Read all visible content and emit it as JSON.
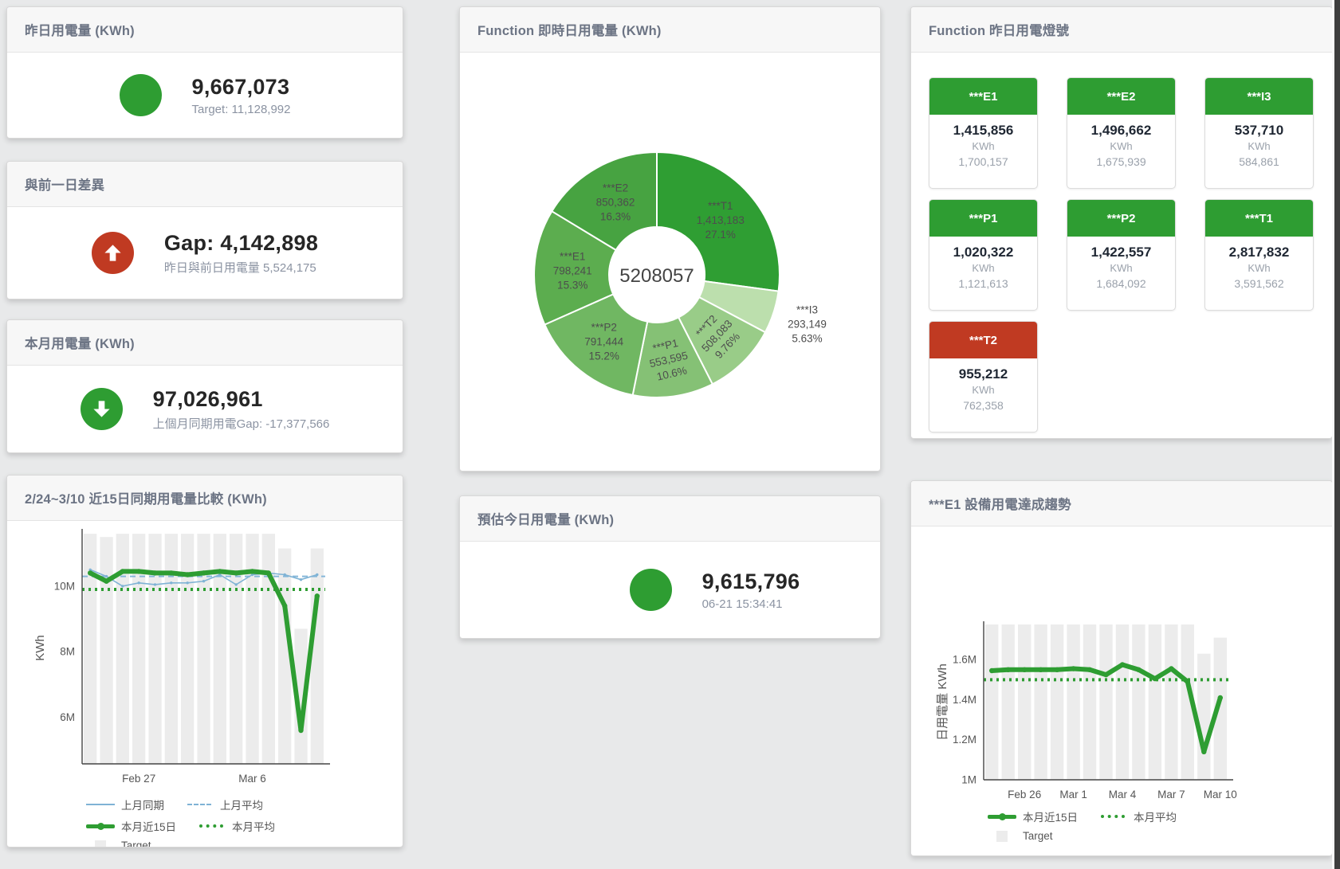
{
  "colors": {
    "green": "#2e9d32",
    "red": "#c03a22",
    "blue": "#7fb3d5",
    "bar_gray": "#ececec"
  },
  "panels": {
    "yesterday": {
      "title": "昨日用電量 (KWh)",
      "value": "9,667,073",
      "subtitle": "Target: 11,128,992"
    },
    "gap": {
      "title": "與前一日差異",
      "value": "Gap: 4,142,898",
      "subtitle": "昨日與前日用電量 5,524,175"
    },
    "month": {
      "title": "本月用電量 (KWh)",
      "value": "97,026,961",
      "subtitle": "上個月同期用電Gap: -17,377,566"
    },
    "today_estimate": {
      "title": "預估今日用電量 (KWh)",
      "value": "9,615,796",
      "subtitle": "06-21 15:34:41"
    },
    "donut": {
      "title": "Function 即時日用電量 (KWh)"
    },
    "lights": {
      "title": "Function 昨日用電燈號",
      "cards": [
        {
          "name": "***E1",
          "value": "1,415,856",
          "unit": "KWh",
          "target": "1,700,157",
          "status": "green"
        },
        {
          "name": "***E2",
          "value": "1,496,662",
          "unit": "KWh",
          "target": "1,675,939",
          "status": "green"
        },
        {
          "name": "***I3",
          "value": "537,710",
          "unit": "KWh",
          "target": "584,861",
          "status": "green"
        },
        {
          "name": "***P1",
          "value": "1,020,322",
          "unit": "KWh",
          "target": "1,121,613",
          "status": "green"
        },
        {
          "name": "***P2",
          "value": "1,422,557",
          "unit": "KWh",
          "target": "1,684,092",
          "status": "green"
        },
        {
          "name": "***T1",
          "value": "2,817,832",
          "unit": "KWh",
          "target": "3,591,562",
          "status": "green"
        },
        {
          "name": "***T2",
          "value": "955,212",
          "unit": "KWh",
          "target": "762,358",
          "status": "red"
        }
      ]
    },
    "compare": {
      "title": "2/24~3/10 近15日同期用電量比較 (KWh)"
    },
    "trend": {
      "title": "***E1 設備用電達成趨勢"
    }
  },
  "chart_data": [
    {
      "id": "donut",
      "type": "pie",
      "title": "Function 即時日用電量 (KWh)",
      "center": "5208057",
      "slices": [
        {
          "name": "***T1",
          "value": 1413183,
          "display": "1,413,183",
          "pct": "27.1%",
          "color": "#2f9e33",
          "label": "inside",
          "rot": 0
        },
        {
          "name": "***I3",
          "value": 293149,
          "display": "293,149",
          "pct": "5.63%",
          "color": "#bcdfad",
          "label": "outside",
          "rot": 0
        },
        {
          "name": "***T2",
          "value": 508083,
          "display": "508,083",
          "pct": "9.76%",
          "color": "#99cc88",
          "label": "inside",
          "rot": -47
        },
        {
          "name": "***P1",
          "value": 553595,
          "display": "553,595",
          "pct": "10.6%",
          "color": "#85c175",
          "label": "inside",
          "rot": -13
        },
        {
          "name": "***P2",
          "value": 791444,
          "display": "791,444",
          "pct": "15.2%",
          "color": "#70b762",
          "label": "inside",
          "rot": 0
        },
        {
          "name": "***E1",
          "value": 798241,
          "display": "798,241",
          "pct": "15.3%",
          "color": "#5cad4f",
          "label": "inside",
          "rot": 0
        },
        {
          "name": "***E2",
          "value": 850362,
          "display": "850,362",
          "pct": "16.3%",
          "color": "#47a341",
          "label": "inside",
          "rot": 0
        }
      ]
    },
    {
      "id": "compare",
      "type": "line",
      "title": "2/24~3/10 近15日同期用電量比較 (KWh)",
      "ylabel": "KWh",
      "ylim": [
        4580000,
        11650000
      ],
      "grid": false,
      "legend_position": "bottom-left",
      "yticks": [
        {
          "v": 6000000,
          "label": "6M"
        },
        {
          "v": 8000000,
          "label": "8M"
        },
        {
          "v": 10000000,
          "label": "10M"
        }
      ],
      "categories": [
        "2/24",
        "2/25",
        "2/26",
        "2/27",
        "2/28",
        "3/1",
        "3/2",
        "3/3",
        "3/4",
        "3/5",
        "3/6",
        "3/7",
        "3/8",
        "3/9",
        "3/10"
      ],
      "xticks": [
        {
          "i": 3,
          "label": "Feb 27"
        },
        {
          "i": 10,
          "label": "Mar 6"
        }
      ],
      "series": [
        {
          "name": "Target",
          "type": "bar",
          "color": "#ececec",
          "values": [
            11600000,
            11500000,
            11600000,
            11600000,
            11600000,
            11600000,
            11600000,
            11600000,
            11600000,
            11600000,
            11600000,
            11600000,
            11150000,
            8700000,
            11150000
          ]
        },
        {
          "name": "上月平均",
          "type": "avg",
          "color": "#85b7d9",
          "width": 2,
          "dash": "7 5",
          "value": 10300000
        },
        {
          "name": "本月平均",
          "type": "avg",
          "color": "#2e9d32",
          "width": 4,
          "dash": "3 5",
          "value": 9900000
        },
        {
          "name": "上月同期",
          "type": "line",
          "color": "#7fb3d5",
          "width": 1.6,
          "dot": 1.7,
          "values": [
            10500000,
            10300000,
            10000000,
            10100000,
            10050000,
            10100000,
            10100000,
            10150000,
            10350000,
            10050000,
            10350000,
            10400000,
            10350000,
            10200000,
            10350000
          ]
        },
        {
          "name": "本月近15日",
          "type": "line",
          "color": "#2e9d32",
          "width": 6,
          "dot": 3.2,
          "values": [
            10400000,
            10150000,
            10450000,
            10450000,
            10400000,
            10400000,
            10350000,
            10400000,
            10450000,
            10400000,
            10450000,
            10400000,
            9400000,
            5600000,
            9700000
          ]
        }
      ],
      "legend": [
        [
          {
            "sw": "line-blue",
            "label": "上月同期"
          },
          {
            "sw": "dash-blue",
            "label": "上月平均"
          }
        ],
        [
          {
            "sw": "thick-green",
            "label": "本月近15日"
          },
          {
            "sw": "dot-green",
            "label": "本月平均"
          }
        ],
        [
          {
            "sw": "square-gray",
            "label": "Target"
          }
        ]
      ]
    },
    {
      "id": "trend",
      "type": "line",
      "title": "***E1 設備用電達成趨勢",
      "ylabel": "日用電量 KWh",
      "ylim": [
        1000000,
        1776000
      ],
      "grid": false,
      "legend_position": "bottom-left",
      "yticks": [
        {
          "v": 1000000,
          "label": "1M"
        },
        {
          "v": 1200000,
          "label": "1.2M"
        },
        {
          "v": 1400000,
          "label": "1.4M"
        },
        {
          "v": 1600000,
          "label": "1.6M"
        }
      ],
      "categories": [
        "2/24",
        "2/25",
        "2/26",
        "2/27",
        "2/28",
        "3/1",
        "3/2",
        "3/3",
        "3/4",
        "3/5",
        "3/6",
        "3/7",
        "3/8",
        "3/9",
        "3/10"
      ],
      "xticks": [
        {
          "i": 2,
          "label": "Feb 26"
        },
        {
          "i": 5,
          "label": "Mar 1"
        },
        {
          "i": 8,
          "label": "Mar 4"
        },
        {
          "i": 11,
          "label": "Mar 7"
        },
        {
          "i": 14,
          "label": "Mar 10"
        }
      ],
      "series": [
        {
          "name": "Target",
          "type": "bar",
          "color": "#ececec",
          "values": [
            1776000,
            1776000,
            1776000,
            1776000,
            1776000,
            1776000,
            1776000,
            1776000,
            1776000,
            1776000,
            1776000,
            1776000,
            1776000,
            1630000,
            1710000
          ]
        },
        {
          "name": "本月平均",
          "type": "avg",
          "color": "#2e9d32",
          "width": 4,
          "dash": "3 5",
          "value": 1500000
        },
        {
          "name": "本月近15日",
          "type": "line",
          "color": "#2e9d32",
          "width": 6,
          "dot": 3.2,
          "values": [
            1545000,
            1550000,
            1550000,
            1550000,
            1550000,
            1555000,
            1550000,
            1525000,
            1575000,
            1550000,
            1505000,
            1555000,
            1490000,
            1140000,
            1410000
          ]
        }
      ],
      "legend": [
        [
          {
            "sw": "thick-green",
            "label": "本月近15日"
          },
          {
            "sw": "dot-green",
            "label": "本月平均"
          }
        ],
        [
          {
            "sw": "square-gray",
            "label": "Target"
          }
        ]
      ]
    }
  ]
}
